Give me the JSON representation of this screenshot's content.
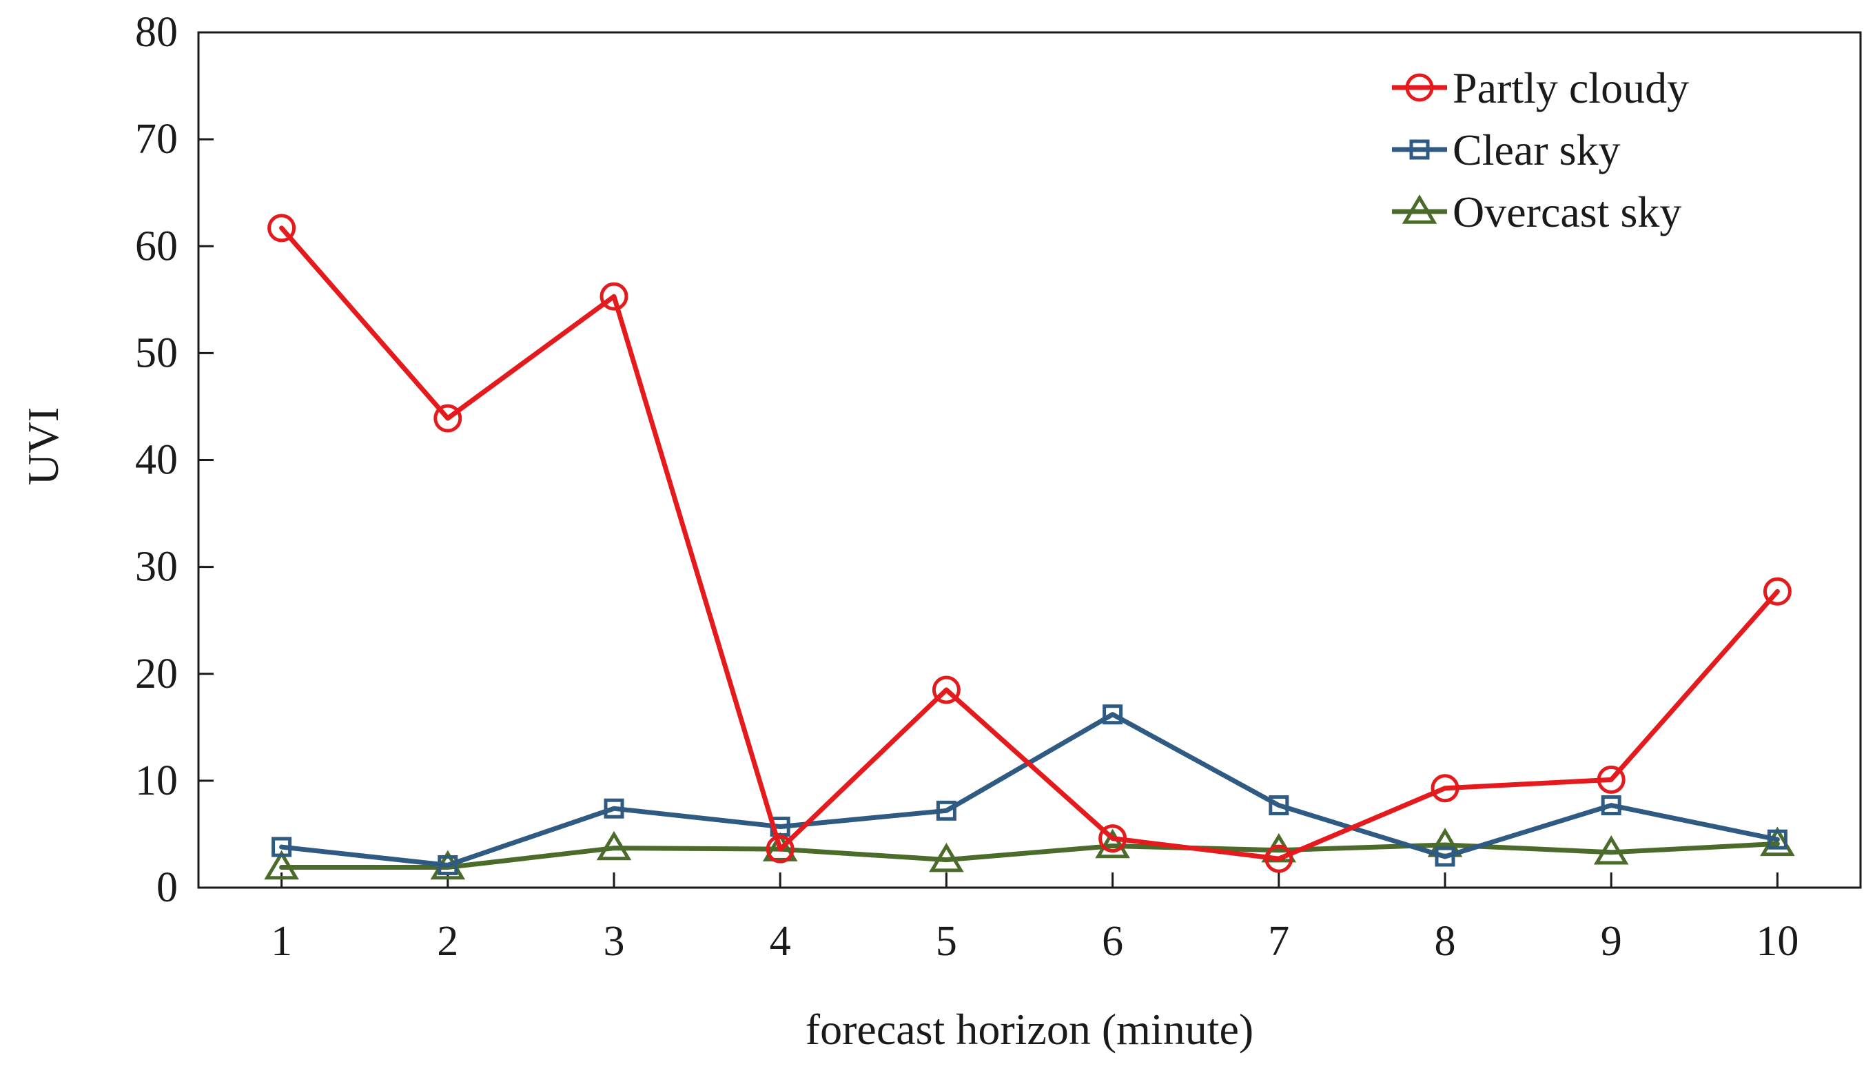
{
  "chart_data": {
    "type": "line",
    "title": "",
    "xlabel": "forecast horizon (minute)",
    "ylabel": "UVI",
    "x": [
      1,
      2,
      3,
      4,
      5,
      6,
      7,
      8,
      9,
      10
    ],
    "x_tick_labels": [
      "1",
      "2",
      "3",
      "4",
      "5",
      "6",
      "7",
      "8",
      "9",
      "10"
    ],
    "xlim": [
      0.5,
      10.5
    ],
    "ylim": [
      0,
      80
    ],
    "y_ticks": [
      0,
      10,
      20,
      30,
      40,
      50,
      60,
      70,
      80
    ],
    "y_tick_labels": [
      "0",
      "10",
      "20",
      "30",
      "40",
      "50",
      "60",
      "70",
      "80"
    ],
    "grid": false,
    "legend_position": "top-right",
    "series": [
      {
        "name": "Partly cloudy",
        "color": "#e41a1c",
        "marker": "circle",
        "values": [
          61.7,
          43.9,
          55.3,
          3.6,
          18.5,
          4.6,
          2.7,
          9.3,
          10.1,
          27.7
        ]
      },
      {
        "name": "Clear sky",
        "color": "#2f5a82",
        "marker": "square",
        "values": [
          3.8,
          2.1,
          7.4,
          5.7,
          7.2,
          16.2,
          7.7,
          2.9,
          7.7,
          4.5
        ]
      },
      {
        "name": "Overcast sky",
        "color": "#4a6b2a",
        "marker": "triangle",
        "values": [
          1.9,
          1.9,
          3.7,
          3.6,
          2.6,
          3.9,
          3.5,
          4.0,
          3.3,
          4.1
        ]
      }
    ]
  }
}
